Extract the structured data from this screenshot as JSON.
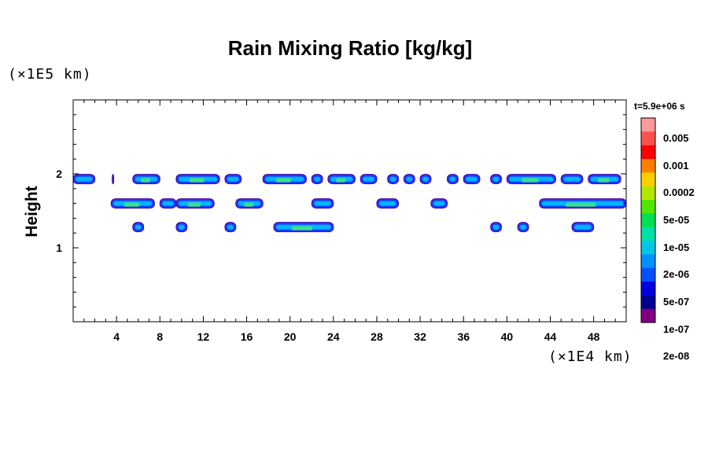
{
  "chart_data": {
    "type": "heatmap",
    "title": "Rain Mixing Ratio [kg/kg]",
    "ylabel": "Height",
    "xlabel": "",
    "x_unit": "(×1E4 km)",
    "y_unit": "(×1E5 km)",
    "time_label": "t=5.9e+06 s",
    "xlim": [
      0,
      51
    ],
    "ylim": [
      0,
      3
    ],
    "x_ticks": [
      4,
      8,
      12,
      16,
      20,
      24,
      28,
      32,
      36,
      40,
      44,
      48
    ],
    "y_ticks": [
      1,
      2
    ],
    "colorbar": {
      "labels": [
        "0.005",
        "0.001",
        "0.0002",
        "5e-05",
        "1e-05",
        "2e-06",
        "5e-07",
        "1e-07",
        "2e-08"
      ],
      "colors": [
        "#ff9a9a",
        "#ff5050",
        "#ff0000",
        "#ff8000",
        "#ffd000",
        "#b4e600",
        "#50e600",
        "#00e050",
        "#00e0a8",
        "#00c8e6",
        "#0090ff",
        "#0050ff",
        "#0000e0",
        "#000090",
        "#800080"
      ]
    },
    "bands": [
      {
        "y": 1.93,
        "x_ranges": [
          [
            0,
            2
          ],
          [
            3.6,
            3.7
          ],
          [
            5.5,
            8
          ],
          [
            9.5,
            13.5
          ],
          [
            14,
            15.5
          ],
          [
            17.5,
            21.5
          ],
          [
            22,
            23
          ],
          [
            23.5,
            26
          ],
          [
            26.5,
            28
          ],
          [
            29,
            30
          ],
          [
            30.5,
            31.5
          ],
          [
            32,
            33
          ],
          [
            34.5,
            35.5
          ],
          [
            36,
            37.5
          ],
          [
            38.5,
            39.5
          ],
          [
            40,
            44.5
          ],
          [
            45,
            47
          ],
          [
            47.5,
            50.5
          ]
        ]
      },
      {
        "y": 1.6,
        "x_ranges": [
          [
            3.5,
            7.5
          ],
          [
            8,
            9.5
          ],
          [
            9.5,
            13
          ],
          [
            15,
            17.5
          ],
          [
            22,
            24
          ],
          [
            28,
            30
          ],
          [
            33,
            34.5
          ],
          [
            43,
            51
          ]
        ]
      },
      {
        "y": 1.28,
        "x_ranges": [
          [
            5.5,
            6.5
          ],
          [
            9.5,
            10.5
          ],
          [
            14,
            15
          ],
          [
            18.5,
            24
          ],
          [
            38.5,
            39.5
          ],
          [
            41,
            42
          ],
          [
            46,
            48
          ]
        ]
      }
    ]
  }
}
